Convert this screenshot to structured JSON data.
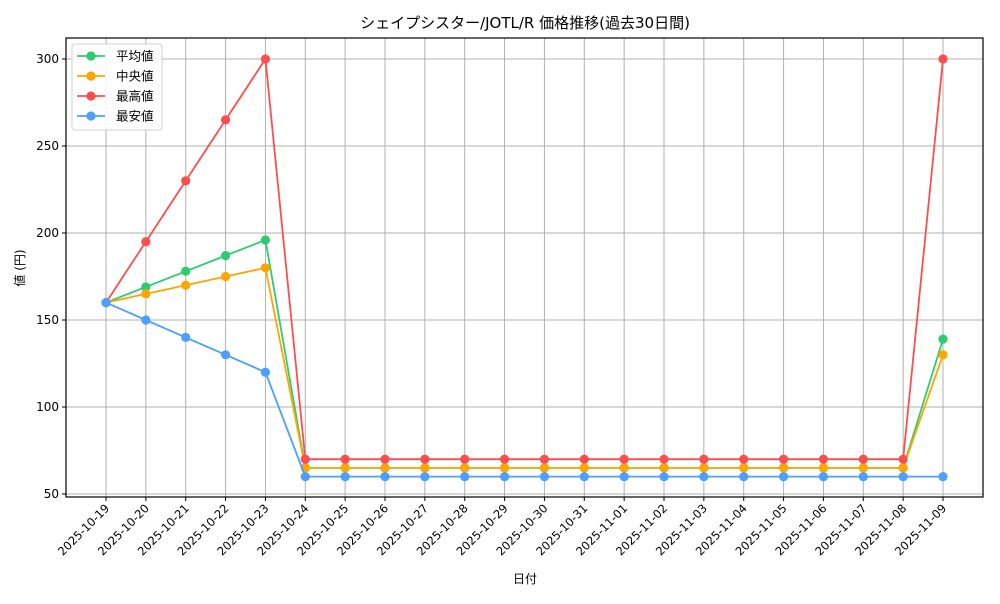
{
  "chart_data": {
    "type": "line",
    "title": "シェイプシスター/JOTL/R 価格推移(過去30日間)",
    "xlabel": "日付",
    "ylabel": "値 (円)",
    "ylim": [
      48,
      312
    ],
    "yticks": [
      50,
      100,
      150,
      200,
      250,
      300
    ],
    "grid": true,
    "legend_position": "upper left",
    "categories": [
      "2025-10-19",
      "2025-10-20",
      "2025-10-21",
      "2025-10-22",
      "2025-10-23",
      "2025-10-24",
      "2025-10-25",
      "2025-10-26",
      "2025-10-27",
      "2025-10-28",
      "2025-10-29",
      "2025-10-30",
      "2025-10-31",
      "2025-11-01",
      "2025-11-02",
      "2025-11-03",
      "2025-11-04",
      "2025-11-05",
      "2025-11-06",
      "2025-11-07",
      "2025-11-08",
      "2025-11-09"
    ],
    "series": [
      {
        "name": "平均値",
        "color": "#2ecc71",
        "values": [
          160,
          169,
          178,
          187,
          196,
          65,
          65,
          65,
          65,
          65,
          65,
          65,
          65,
          65,
          65,
          65,
          65,
          65,
          65,
          65,
          65,
          139
        ]
      },
      {
        "name": "中央値",
        "color": "#ffa500",
        "values": [
          160,
          165,
          170,
          175,
          180,
          65,
          65,
          65,
          65,
          65,
          65,
          65,
          65,
          65,
          65,
          65,
          65,
          65,
          65,
          65,
          65,
          130
        ]
      },
      {
        "name": "最高値",
        "color": "#ff4d4d",
        "values": [
          160,
          195,
          230,
          265,
          300,
          70,
          70,
          70,
          70,
          70,
          70,
          70,
          70,
          70,
          70,
          70,
          70,
          70,
          70,
          70,
          70,
          300
        ]
      },
      {
        "name": "最安値",
        "color": "#4d9fff",
        "values": [
          160,
          150,
          140,
          130,
          120,
          60,
          60,
          60,
          60,
          60,
          60,
          60,
          60,
          60,
          60,
          60,
          60,
          60,
          60,
          60,
          60,
          60
        ]
      }
    ]
  }
}
